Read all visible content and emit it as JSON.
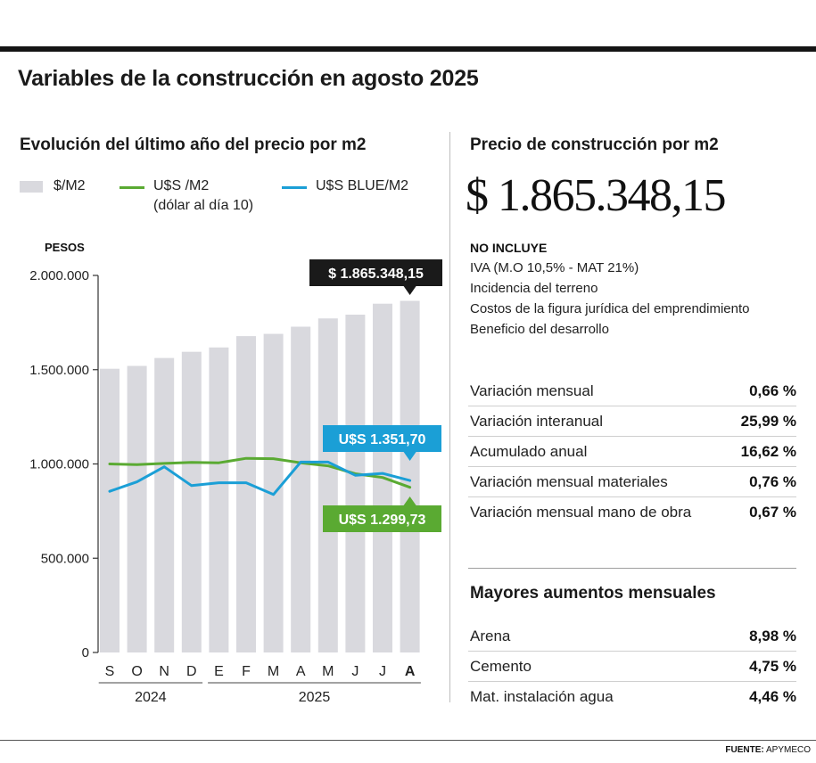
{
  "title": "Variables de la construcción en agosto 2025",
  "left": {
    "subtitle": "Evolución del último año del precio por m2",
    "legend": [
      {
        "label": "$/M2",
        "note": "",
        "color": "#d9d9de"
      },
      {
        "label": "U$S /M2",
        "note": "(dólar al día 10)",
        "color": "#5aaa32"
      },
      {
        "label": "U$S BLUE/M2",
        "note": "",
        "color": "#1b9fd6"
      }
    ]
  },
  "chart_data": {
    "type": "bar",
    "ylabel": "PESOS",
    "ylim": [
      0,
      2000000
    ],
    "yticks": [
      0,
      500000,
      1000000,
      1500000,
      2000000
    ],
    "ytick_labels": [
      "0",
      "500.000",
      "1.000.000",
      "1.500.000",
      "2.000.000"
    ],
    "categories": [
      "S",
      "O",
      "N",
      "D",
      "E",
      "F",
      "M",
      "A",
      "M",
      "J",
      "J",
      "A"
    ],
    "year_labels": [
      {
        "label": "2024",
        "from": 0,
        "to": 3
      },
      {
        "label": "2025",
        "from": 4,
        "to": 11
      }
    ],
    "bar_color": "#d9d9de",
    "series": [
      {
        "name": "$/M2",
        "type": "bar",
        "values": [
          1505000,
          1520000,
          1562000,
          1595000,
          1618000,
          1678000,
          1690000,
          1728000,
          1772000,
          1792000,
          1850000,
          1865348.15
        ]
      },
      {
        "name": "U$S /M2",
        "type": "line",
        "color": "#5aaa32",
        "values": [
          1000000,
          996000,
          1003000,
          1008000,
          1006000,
          1030000,
          1028000,
          1006000,
          990000,
          948000,
          928000,
          876000
        ]
      },
      {
        "name": "U$S BLUE/M2",
        "type": "line",
        "color": "#1b9fd6",
        "values": [
          855000,
          905000,
          985000,
          885000,
          900000,
          900000,
          838000,
          1010000,
          1010000,
          940000,
          950000,
          912000
        ]
      }
    ],
    "annotations": [
      {
        "text": "$ 1.865.348,15",
        "index": 11,
        "value": 1865348.15,
        "color": "#1a1a1a"
      },
      {
        "text": "U$S 1.351,70",
        "index": 11,
        "value": 912000,
        "color": "#1b9fd6"
      },
      {
        "text": "U$S 1.299,73",
        "index": 11,
        "value": 876000,
        "color": "#5aaa32"
      }
    ]
  },
  "right": {
    "subtitle": "Precio de construcción por m2",
    "price": "$ 1.865.348,15",
    "excludes_title": "NO INCLUYE",
    "excludes": [
      "IVA (M.O 10,5% - MAT 21%)",
      "Incidencia del terreno",
      "Costos de la figura jurídica del emprendimiento",
      "Beneficio del desarrollo"
    ],
    "variations": [
      {
        "label": "Variación mensual",
        "value": "0,66 %"
      },
      {
        "label": "Variación interanual",
        "value": "25,99 %"
      },
      {
        "label": "Acumulado anual",
        "value": "16,62 %"
      },
      {
        "label": "Variación mensual materiales",
        "value": "0,76 %"
      },
      {
        "label": "Variación mensual mano de obra",
        "value": "0,67 %"
      }
    ],
    "increases_title": "Mayores aumentos mensuales",
    "increases": [
      {
        "label": "Arena",
        "value": "8,98 %"
      },
      {
        "label": "Cemento",
        "value": "4,75 %"
      },
      {
        "label": "Mat. instalación agua",
        "value": "4,46 %"
      }
    ]
  },
  "source": {
    "label": "FUENTE:",
    "value": "APYMECO"
  }
}
